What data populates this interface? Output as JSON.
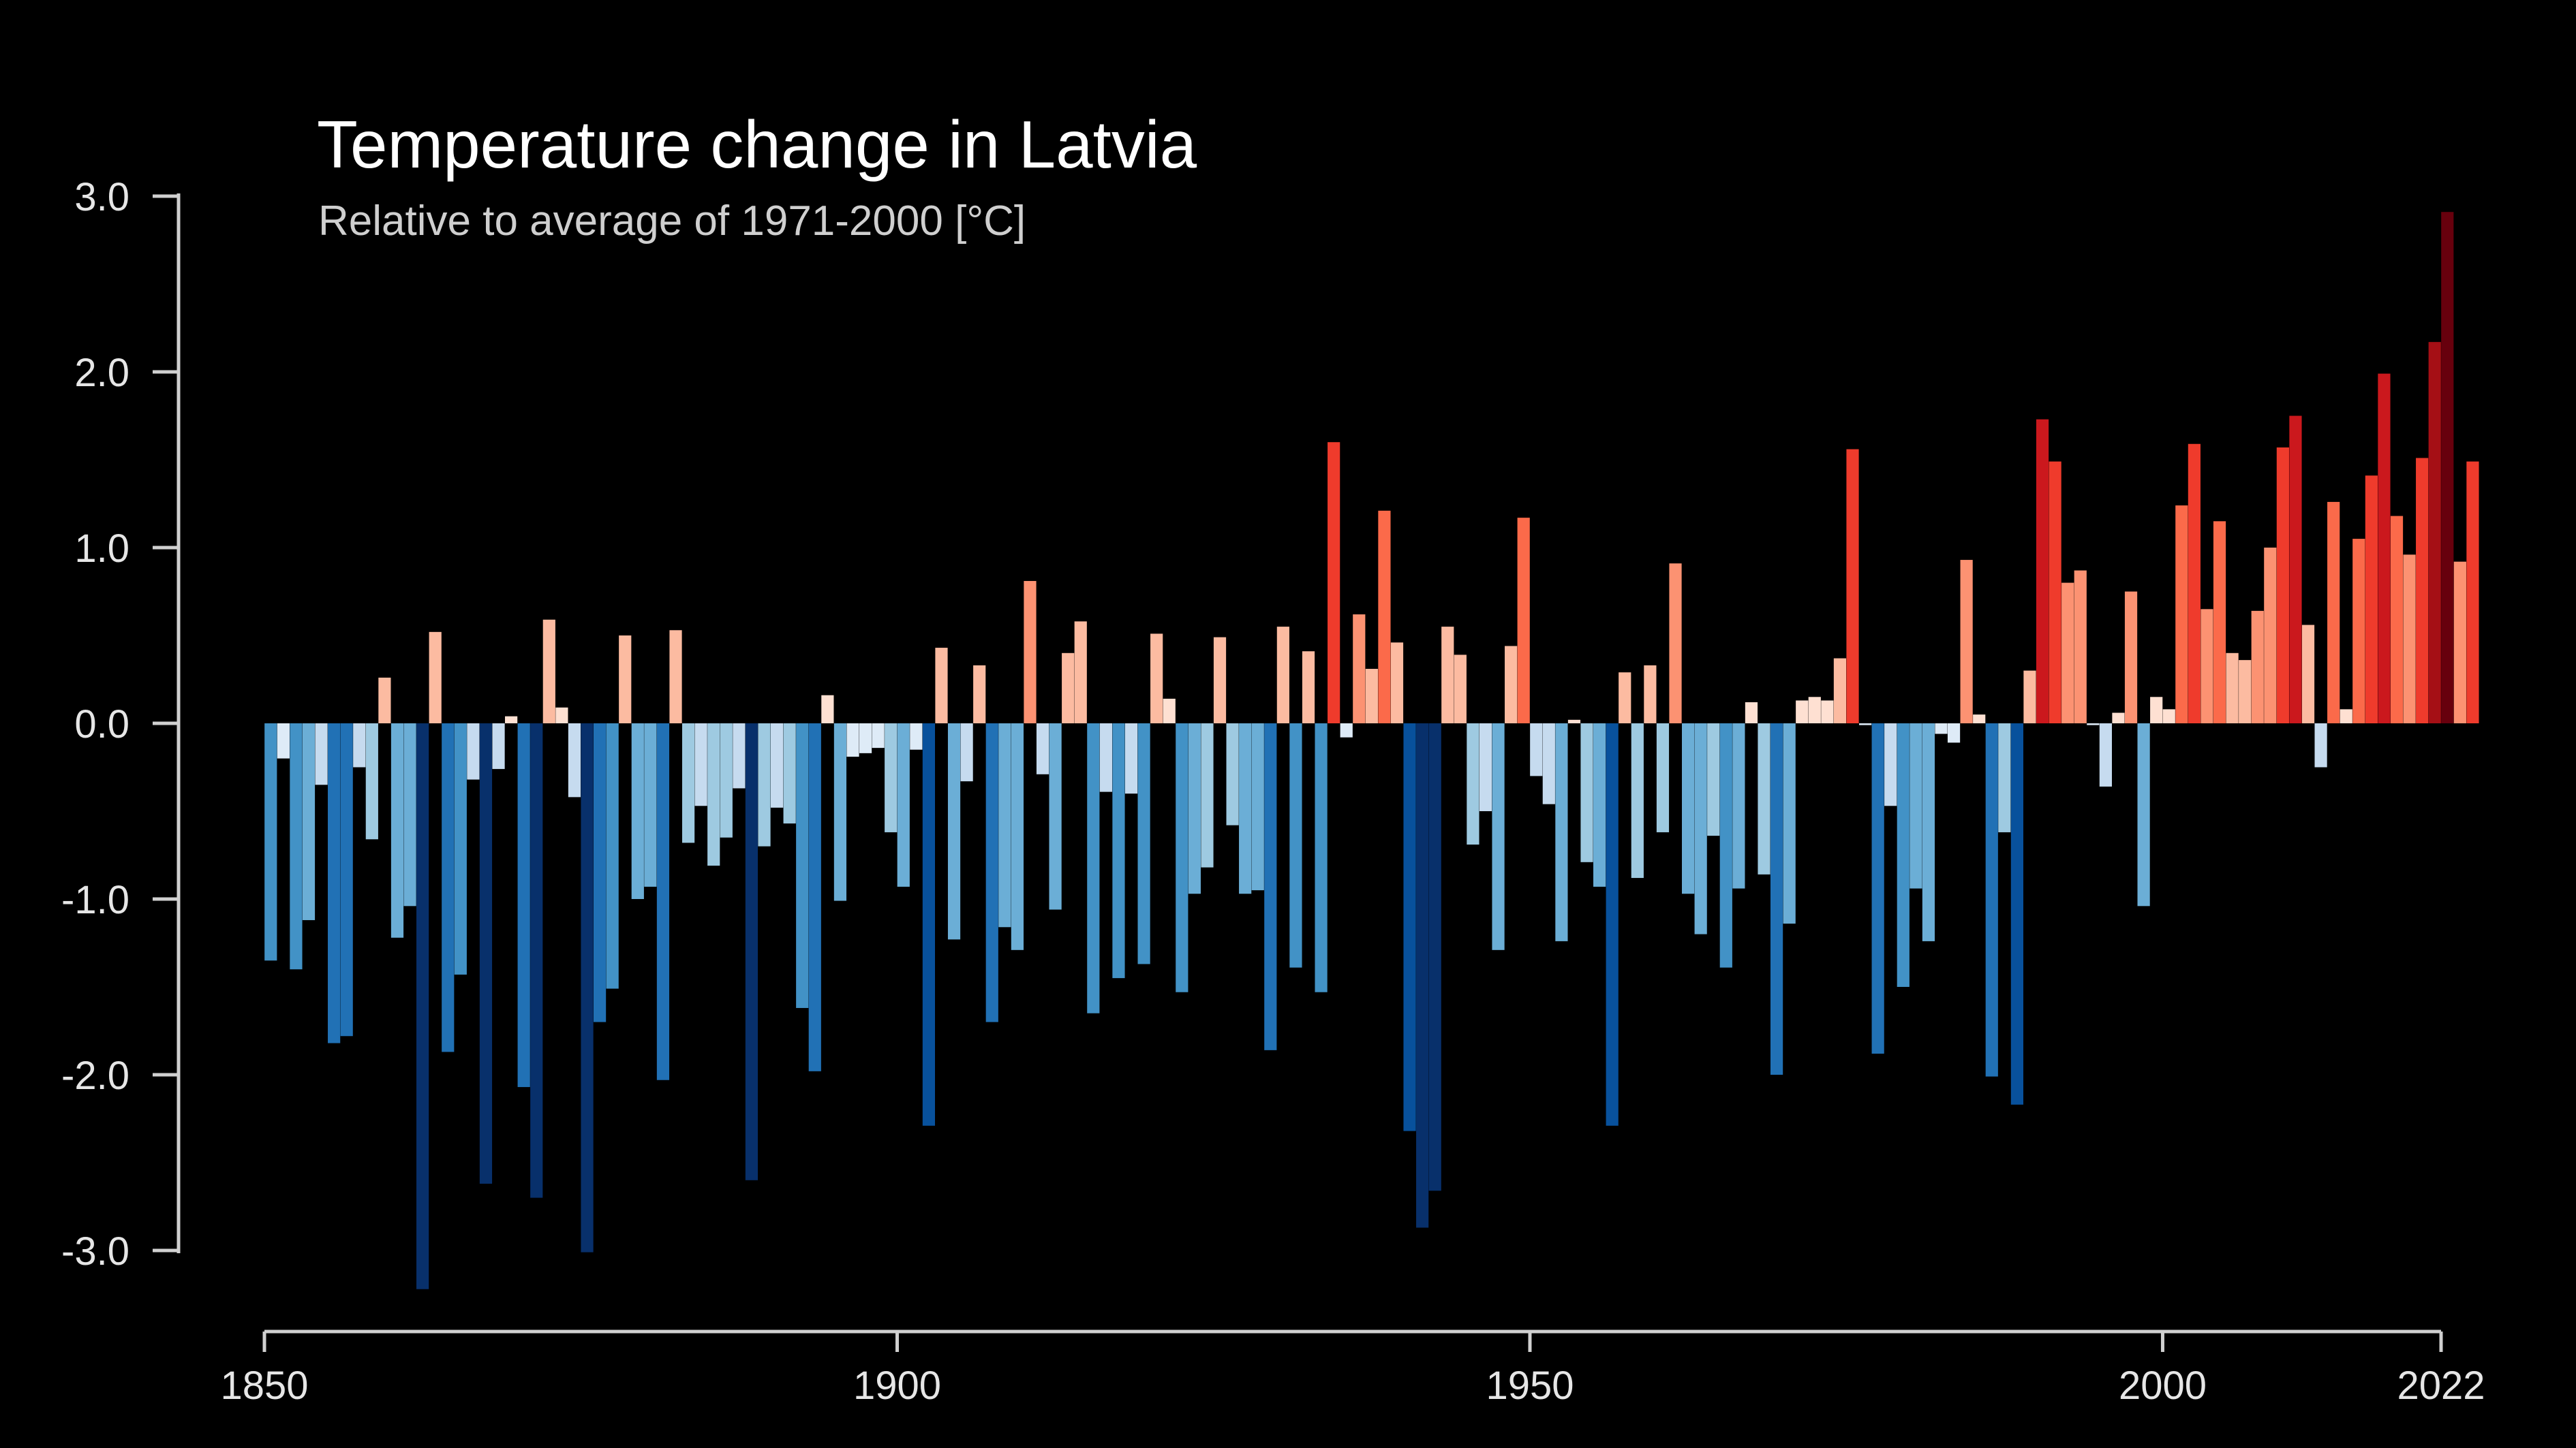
{
  "chart_data": {
    "type": "bar",
    "title": "Temperature change in Latvia",
    "subtitle": "Relative to average of 1971-2000  [°C]",
    "xlabel": "",
    "ylabel": "",
    "ylim": [
      -3.25,
      3.0
    ],
    "y_ticks": [
      "3.0",
      "2.0",
      "1.0",
      "0.0",
      "-1.0",
      "-2.0",
      "-3.0"
    ],
    "x_ticks": [
      "1850",
      "1900",
      "1950",
      "2000",
      "2022"
    ],
    "start_year": 1850,
    "end_year": 2022,
    "colors": {
      "background": "#000000",
      "axis": "#d0d0d0",
      "scale": [
        "#08306b",
        "#08519c",
        "#2171b5",
        "#4292c6",
        "#6baed6",
        "#9ecae1",
        "#c6dbef",
        "#deebf7",
        "#fee0d2",
        "#fcbba1",
        "#fc9272",
        "#fb6a4a",
        "#ef3b2c",
        "#cb181d",
        "#a50f15",
        "#67000d"
      ]
    },
    "series": [
      {
        "values": [
          -1.35,
          -0.2,
          -1.4,
          -1.12,
          -0.35,
          -1.82,
          -1.78,
          -0.25,
          -0.66,
          0.26,
          -1.22,
          -1.04,
          -3.22,
          0.52,
          -1.87,
          -1.43,
          -0.32,
          -2.62,
          -0.26,
          0.04,
          -2.07,
          -2.7,
          0.59,
          0.09,
          -0.42,
          -3.01,
          -1.7,
          -1.51,
          0.5,
          -1.0,
          -0.93,
          -2.03,
          0.53,
          -0.68,
          -0.47,
          -0.81,
          -0.65,
          -0.37,
          -2.6,
          -0.7,
          -0.48,
          -0.57,
          -1.62,
          -1.98,
          0.16,
          -1.01,
          -0.19,
          -0.17,
          -0.14,
          -0.62,
          -0.93,
          -0.15,
          -2.29,
          0.43,
          -1.23,
          -0.33,
          0.33,
          -1.7,
          -1.16,
          -1.29,
          0.81,
          -0.29,
          -1.06,
          0.4,
          0.58,
          -1.65,
          -0.39,
          -1.45,
          -0.4,
          -1.37,
          0.51,
          0.14,
          -1.53,
          -0.97,
          -0.82,
          0.49,
          -0.58,
          -0.97,
          -0.95,
          -1.86,
          0.55,
          -1.39,
          0.41,
          -1.53,
          1.6,
          -0.08,
          0.62,
          0.31,
          1.21,
          0.46,
          -2.32,
          -2.87,
          -2.66,
          0.55,
          0.39,
          -0.69,
          -0.5,
          -1.29,
          0.44,
          1.17,
          -0.3,
          -0.46,
          -1.24,
          0.02,
          -0.79,
          -0.93,
          -2.29,
          0.29,
          -0.88,
          0.33,
          -0.62,
          0.91,
          -0.97,
          -1.2,
          -0.64,
          -1.39,
          -0.94,
          0.12,
          -0.86,
          -2.0,
          -1.14,
          0.13,
          0.15,
          0.13,
          0.37,
          1.56,
          -0.01,
          -1.88,
          -0.47,
          -1.5,
          -0.94,
          -1.24,
          -0.06,
          -0.11,
          0.93,
          0.05,
          -2.01,
          -0.62,
          -2.17,
          0.3,
          1.73,
          1.49,
          0.8,
          0.87,
          -0.01,
          -0.36,
          0.06,
          0.75,
          -1.04,
          0.15,
          0.08,
          1.24,
          1.59,
          0.65,
          1.15,
          0.4,
          0.36,
          0.64,
          1.0,
          1.57,
          1.75,
          0.56,
          -0.25,
          1.26,
          0.08,
          1.05,
          1.41,
          1.99,
          1.18,
          0.96,
          1.51,
          2.17,
          2.91,
          0.92,
          1.49
        ]
      }
    ]
  }
}
